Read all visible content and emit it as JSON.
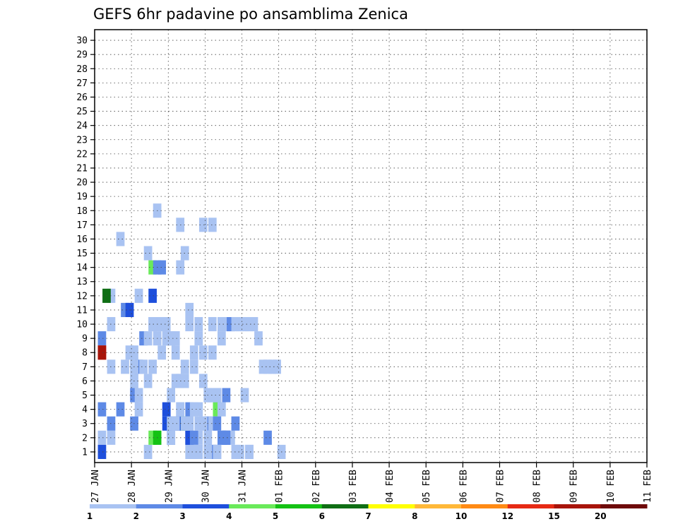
{
  "chart_data": {
    "type": "heatmap",
    "title": "GEFS 6hr padavine po ansamblima Zenica",
    "xlabel": "",
    "ylabel": "",
    "x_tick_labels": [
      "27 JAN",
      "28 JAN",
      "29 JAN",
      "30 JAN",
      "31 JAN",
      "01 FEB",
      "02 FEB",
      "03 FEB",
      "04 FEB",
      "05 FEB",
      "06 FEB",
      "07 FEB",
      "08 FEB",
      "09 FEB",
      "10 FEB",
      "11 FEB"
    ],
    "y_tick_labels": [
      "1",
      "2",
      "3",
      "4",
      "5",
      "6",
      "7",
      "8",
      "9",
      "10",
      "11",
      "12",
      "13",
      "14",
      "15",
      "16",
      "17",
      "18",
      "19",
      "20",
      "21",
      "22",
      "23",
      "24",
      "25",
      "26",
      "27",
      "28",
      "29",
      "30"
    ],
    "grid": true,
    "color_scale": {
      "labels": [
        "1",
        "2",
        "3",
        "4",
        "5",
        "6",
        "7",
        "8",
        "10",
        "12",
        "15",
        "20"
      ],
      "colors": [
        "#a9c3f2",
        "#5e8ae6",
        "#1e4fdc",
        "#6aea5a",
        "#14c214",
        "#0f6e14",
        "#ffff00",
        "#ffb838",
        "#ff8a14",
        "#e62a14",
        "#a8140a",
        "#6e0a0a"
      ]
    },
    "cells": [
      [
        1,
        2,
        1
      ],
      [
        6,
        7,
        1
      ],
      [
        9,
        4,
        1
      ],
      [
        11,
        1,
        1
      ],
      [
        12,
        10,
        1
      ],
      [
        12,
        10,
        1
      ],
      [
        13,
        10,
        1
      ],
      [
        14,
        10,
        1
      ],
      [
        15,
        9,
        1
      ],
      [
        15,
        9,
        1
      ],
      [
        16,
        3,
        1
      ],
      [
        16,
        3,
        1
      ],
      [
        17,
        6,
        1
      ],
      [
        17,
        9,
        1
      ],
      [
        18,
        4,
        1
      ],
      [
        18,
        6,
        1
      ],
      [
        19,
        6,
        1
      ],
      [
        19,
        7,
        1
      ],
      [
        20,
        1,
        1
      ],
      [
        20,
        3,
        1
      ],
      [
        21,
        1,
        1
      ],
      [
        22,
        2,
        1
      ],
      [
        23,
        6,
        1
      ],
      [
        24,
        1,
        1
      ],
      [
        33,
        1,
        1
      ],
      [
        1,
        4,
        2
      ],
      [
        1,
        9,
        2
      ],
      [
        8,
        5,
        2
      ],
      [
        15,
        3,
        3
      ],
      [
        16,
        3,
        2
      ],
      [
        16,
        2,
        2
      ],
      [
        17,
        3,
        3
      ],
      [
        18,
        3,
        3
      ],
      [
        19,
        3,
        2
      ],
      [
        20,
        2,
        2
      ],
      [
        20,
        2,
        3
      ],
      [
        24,
        3,
        2
      ],
      [
        26,
        4,
        4
      ],
      [
        26,
        5,
        3
      ],
      [
        27,
        4,
        1
      ],
      [
        28,
        5,
        2
      ],
      [
        3,
        2,
        1
      ],
      [
        3,
        10,
        1
      ],
      [
        5,
        4,
        2
      ],
      [
        8,
        8,
        1
      ],
      [
        9,
        7,
        2
      ],
      [
        12,
        7,
        1
      ],
      [
        13,
        2,
        1
      ],
      [
        15,
        4,
        3
      ],
      [
        16,
        2,
        1
      ],
      [
        19,
        3,
        4
      ],
      [
        20,
        4,
        2
      ],
      [
        21,
        2,
        2
      ],
      [
        22,
        4,
        1
      ],
      [
        23,
        3,
        1
      ],
      [
        24,
        2,
        1
      ],
      [
        24,
        5,
        2
      ],
      [
        25,
        3,
        1
      ],
      [
        25,
        5,
        1
      ],
      [
        26,
        3,
        2
      ],
      [
        27,
        2,
        1
      ],
      [
        28,
        2,
        3
      ],
      [
        29,
        2,
        1
      ],
      [
        30,
        3,
        2
      ],
      [
        31,
        1,
        1
      ],
      [
        1,
        1,
        3
      ],
      [
        3,
        12,
        1
      ],
      [
        8,
        3,
        2
      ],
      [
        12,
        2,
        4
      ],
      [
        13,
        2,
        5
      ],
      [
        16,
        3,
        1
      ],
      [
        17,
        3,
        1
      ],
      [
        21,
        1,
        1
      ],
      [
        22,
        1,
        1
      ],
      [
        24,
        1,
        1
      ],
      [
        25,
        1,
        2
      ],
      [
        26,
        1,
        2
      ],
      [
        27,
        2,
        2
      ],
      [
        28,
        2,
        2
      ],
      [
        30,
        1,
        1
      ],
      [
        33,
        1,
        1
      ],
      [
        37,
        2,
        2
      ],
      [
        40,
        1,
        1
      ],
      [
        1,
        8,
        10
      ],
      [
        1,
        8,
        11
      ],
      [
        2,
        12,
        6
      ],
      [
        3,
        3,
        2
      ],
      [
        3,
        7,
        1
      ],
      [
        5,
        16,
        1
      ],
      [
        6,
        11,
        2
      ],
      [
        7,
        8,
        1
      ],
      [
        7,
        11,
        3
      ],
      [
        9,
        12,
        1
      ],
      [
        10,
        9,
        2
      ],
      [
        11,
        15,
        1
      ],
      [
        12,
        12,
        3
      ],
      [
        12,
        14,
        4
      ],
      [
        13,
        14,
        2
      ],
      [
        13,
        18,
        1
      ],
      [
        14,
        14,
        2
      ],
      [
        16,
        9,
        1
      ],
      [
        17,
        3,
        1
      ],
      [
        17,
        9,
        1
      ],
      [
        18,
        17,
        1
      ],
      [
        18,
        14,
        1
      ],
      [
        19,
        15,
        1
      ],
      [
        20,
        10,
        1
      ],
      [
        20,
        11,
        1
      ],
      [
        21,
        4,
        1
      ],
      [
        21,
        8,
        1
      ],
      [
        22,
        10,
        1
      ],
      [
        23,
        8,
        1
      ],
      [
        23,
        17,
        1
      ],
      [
        24,
        5,
        1
      ],
      [
        25,
        17,
        1
      ],
      [
        26,
        1,
        1
      ],
      [
        8,
        6,
        1
      ],
      [
        8,
        7,
        1
      ],
      [
        9,
        5,
        1
      ],
      [
        10,
        7,
        1
      ],
      [
        11,
        6,
        1
      ],
      [
        11,
        9,
        1
      ],
      [
        12,
        10,
        1
      ],
      [
        13,
        9,
        1
      ],
      [
        14,
        8,
        1
      ],
      [
        15,
        10,
        1
      ],
      [
        16,
        5,
        1
      ],
      [
        16,
        9,
        1
      ],
      [
        17,
        8,
        1
      ],
      [
        18,
        4,
        1
      ],
      [
        19,
        3,
        1
      ],
      [
        20,
        3,
        1
      ],
      [
        21,
        7,
        1
      ],
      [
        22,
        3,
        1
      ],
      [
        22,
        9,
        1
      ],
      [
        24,
        1,
        1
      ],
      [
        25,
        8,
        1
      ],
      [
        25,
        10,
        1
      ],
      [
        26,
        5,
        1
      ],
      [
        27,
        9,
        1
      ],
      [
        27,
        10,
        1
      ],
      [
        28,
        10,
        1
      ],
      [
        29,
        10,
        2
      ],
      [
        30,
        10,
        1
      ],
      [
        31,
        10,
        1
      ],
      [
        32,
        5,
        1
      ],
      [
        32,
        10,
        1
      ],
      [
        33,
        10,
        1
      ],
      [
        34,
        10,
        1
      ],
      [
        35,
        9,
        1
      ],
      [
        36,
        7,
        1
      ],
      [
        37,
        7,
        1
      ],
      [
        38,
        7,
        1
      ],
      [
        39,
        7,
        1
      ]
    ],
    "note_cells_format": "[x_index, y_member, level_index] where level_index refers to color_scale.colors"
  }
}
